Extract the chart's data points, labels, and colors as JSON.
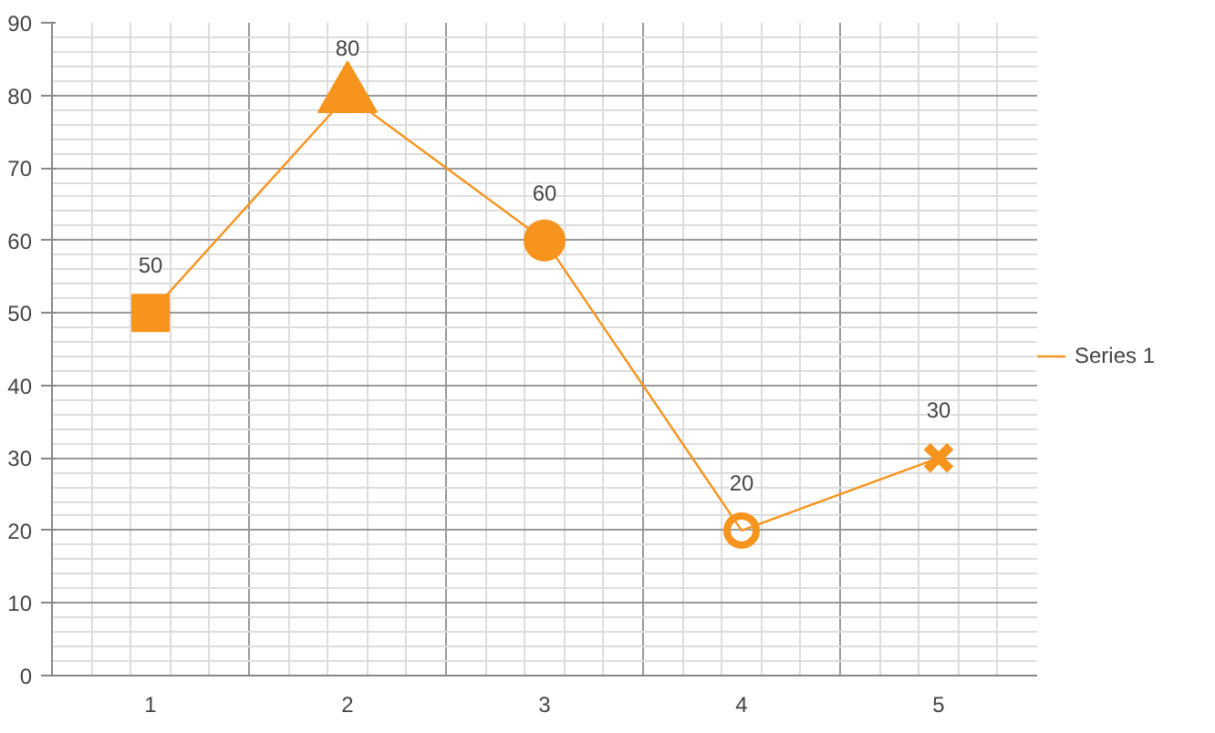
{
  "chart_data": {
    "type": "line",
    "categories": [
      "1",
      "2",
      "3",
      "4",
      "5"
    ],
    "series": [
      {
        "name": "Series 1",
        "color": "#f7941d",
        "values": [
          50,
          80,
          60,
          20,
          30
        ],
        "marker": [
          "square",
          "triangle",
          "circle",
          "semicircle",
          "cross"
        ]
      }
    ],
    "ylim": [
      0,
      90
    ],
    "yticks": [
      0,
      10,
      20,
      30,
      40,
      50,
      60,
      70,
      80,
      90
    ],
    "grid": true,
    "legend": "right",
    "data_labels": true,
    "line_style": "solid"
  }
}
